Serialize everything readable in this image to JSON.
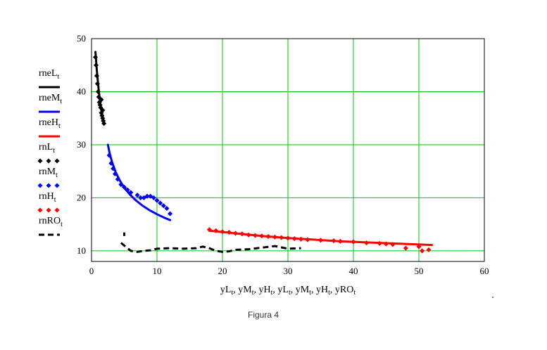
{
  "caption": "Figura 4",
  "colors": {
    "black": "#000000",
    "blue": "#0000ff",
    "red": "#ff0000",
    "grid": "#00c800"
  },
  "chart_data": {
    "type": "scatter",
    "xlim": [
      0,
      60
    ],
    "ylim": [
      8,
      50
    ],
    "xticks": [
      "0",
      "10",
      "20",
      "30",
      "40",
      "50",
      "60"
    ],
    "yticks": [
      "10",
      "20",
      "30",
      "40",
      "50"
    ],
    "xlabel": "yL t, yM t, yH t, yL t, yM t, yH t, yRO t",
    "grid": true,
    "legend_position": "left",
    "series": [
      {
        "name": "rneL t",
        "style": "line",
        "color": "#000000",
        "x": [
          0.6,
          0.7,
          0.8,
          0.9,
          1.0,
          1.1,
          1.2,
          1.3,
          1.4,
          1.5,
          1.6,
          1.7,
          1.8,
          1.9
        ],
        "y": [
          47.5,
          45.8,
          44.2,
          42.8,
          41.5,
          40.3,
          39.2,
          38.2,
          37.3,
          36.5,
          35.8,
          35.2,
          34.6,
          34.1
        ]
      },
      {
        "name": "rneM t",
        "style": "line",
        "color": "#0000ff",
        "x": [
          2.5,
          2.8,
          3.2,
          3.7,
          4.3,
          5.0,
          5.8,
          6.7,
          7.7,
          8.8,
          10.0,
          11.2,
          12.0
        ],
        "y": [
          30.0,
          28.2,
          26.5,
          24.8,
          23.3,
          21.9,
          20.7,
          19.6,
          18.6,
          17.7,
          16.9,
          16.2,
          15.8
        ]
      },
      {
        "name": "rneH t",
        "style": "line",
        "color": "#ff0000",
        "x": [
          18,
          22,
          26,
          30,
          34,
          38,
          42,
          46,
          50,
          52
        ],
        "y": [
          13.8,
          13.3,
          12.8,
          12.4,
          12.1,
          11.8,
          11.6,
          11.4,
          11.2,
          11.1
        ]
      },
      {
        "name": "rnL t",
        "style": "dots",
        "color": "#000000",
        "x": [
          0.6,
          0.7,
          0.8,
          0.9,
          1.0,
          1.1,
          1.2,
          1.3,
          1.4,
          1.5,
          1.6,
          1.7,
          1.8,
          1.9,
          1.7,
          1.5
        ],
        "y": [
          46.5,
          45.0,
          43.0,
          41.5,
          40.0,
          39.0,
          38.0,
          37.5,
          37.0,
          36.0,
          35.5,
          35.0,
          34.5,
          34.0,
          36.5,
          38.5
        ]
      },
      {
        "name": "rnM t",
        "style": "dots",
        "color": "#0000ff",
        "x": [
          2.7,
          3.0,
          3.3,
          3.6,
          4.0,
          4.5,
          5.0,
          5.5,
          6.0,
          7.0,
          7.5,
          8.0,
          8.5,
          9.0,
          9.5,
          10.0,
          10.5,
          11.0,
          11.5,
          12.0
        ],
        "y": [
          28.0,
          26.5,
          25.5,
          24.5,
          23.5,
          22.5,
          22.0,
          21.5,
          21.0,
          20.5,
          20.0,
          20.0,
          20.3,
          20.3,
          20.0,
          19.5,
          19.0,
          18.5,
          18.0,
          17.0
        ]
      },
      {
        "name": "rnH t",
        "style": "dots",
        "color": "#ff0000",
        "x": [
          18.0,
          19.0,
          20.0,
          21.0,
          22.0,
          23.0,
          24.0,
          25.0,
          26.0,
          27.0,
          28.0,
          29.0,
          30.0,
          31.0,
          32.0,
          33.0,
          35.0,
          37.0,
          38.0,
          40.0,
          42.0,
          44.0,
          45.0,
          46.0,
          48.0,
          50.0,
          50.5,
          51.5
        ],
        "y": [
          14.0,
          13.8,
          13.6,
          13.5,
          13.3,
          13.2,
          13.0,
          12.9,
          12.8,
          12.7,
          12.6,
          12.5,
          12.4,
          12.3,
          12.2,
          12.1,
          12.0,
          11.9,
          11.8,
          11.7,
          11.5,
          11.4,
          11.3,
          11.2,
          10.5,
          10.8,
          10.0,
          10.2
        ]
      },
      {
        "name": "rnRO t",
        "style": "dash",
        "color": "#000000",
        "x": [
          4.5,
          5.0,
          5.5,
          6.0,
          7.0,
          8.0,
          9.0,
          10.0,
          12.0,
          14.0,
          16.0,
          17.0,
          18.0,
          19.0,
          20.0,
          21.0,
          22.0,
          24.0,
          26.0,
          28.0,
          30.0,
          32.0
        ],
        "y": [
          11.5,
          11.0,
          10.5,
          10.0,
          9.8,
          10.0,
          10.1,
          10.4,
          10.5,
          10.4,
          10.5,
          10.8,
          10.5,
          10.0,
          9.8,
          9.9,
          10.2,
          10.3,
          10.6,
          10.9,
          10.4,
          10.5
        ]
      }
    ],
    "extra_segments": [
      {
        "series": "rnRO t",
        "x": [
          5.0,
          5.0
        ],
        "y": [
          12.8,
          13.8
        ]
      }
    ]
  }
}
